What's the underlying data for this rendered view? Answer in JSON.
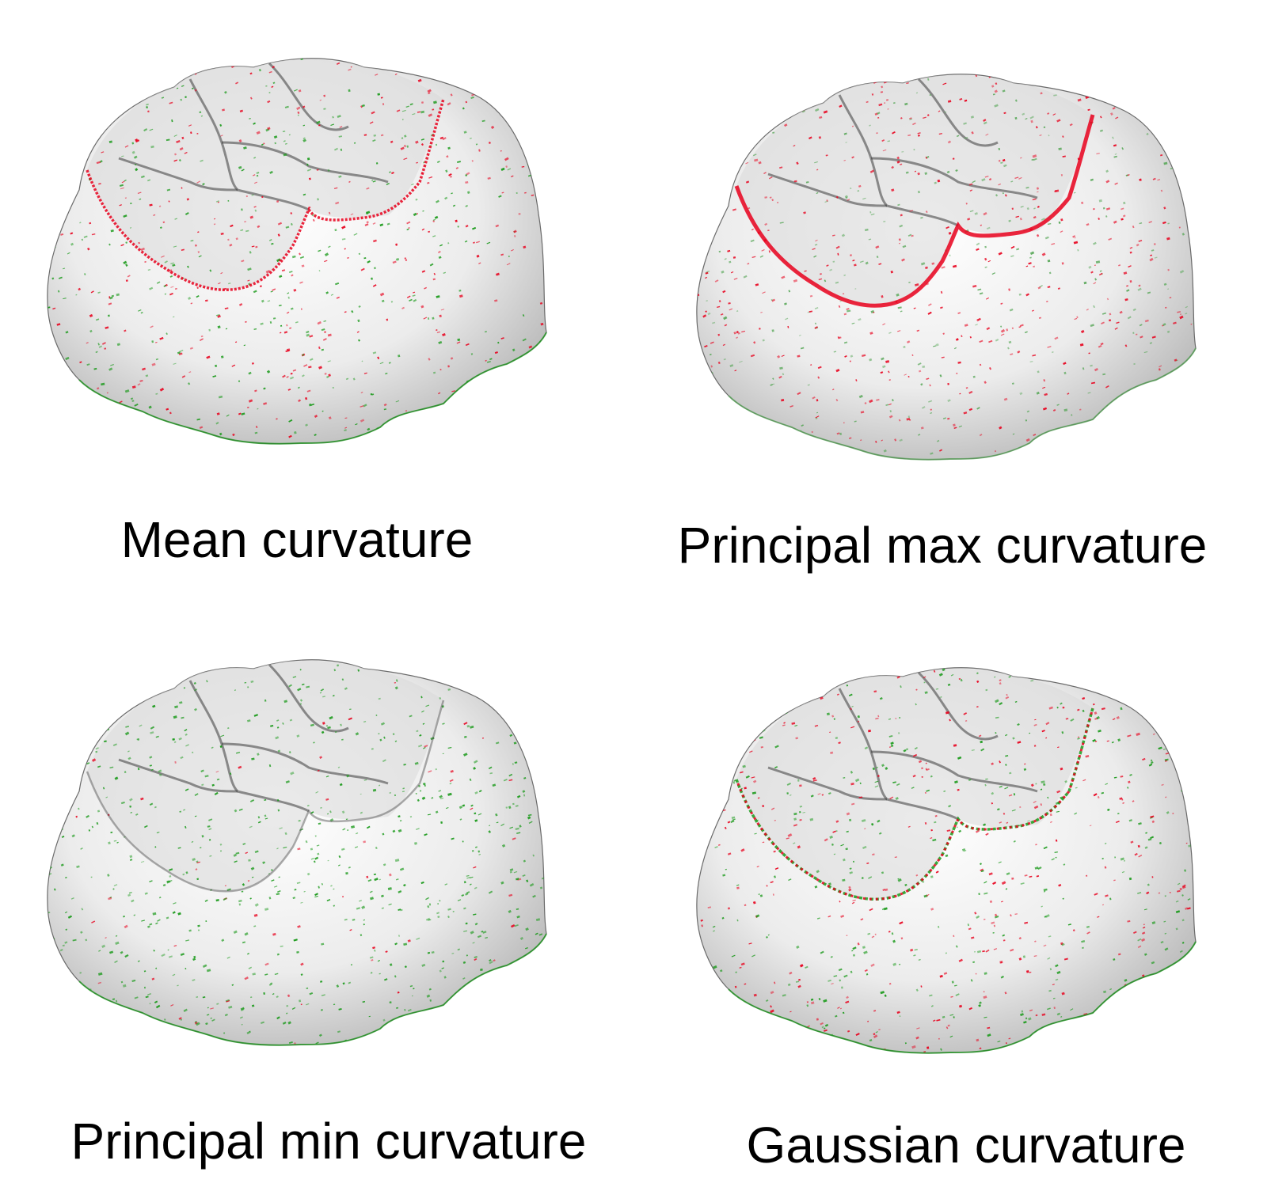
{
  "panels": [
    {
      "id": "mean",
      "caption": "Mean curvature",
      "positive_color": "#e8001c",
      "negative_color": "#1a9a1a",
      "red_density": 0.45,
      "green_density": 0.55,
      "ridge_highlight": "red"
    },
    {
      "id": "max",
      "caption": "Principal max curvature",
      "positive_color": "#e8001c",
      "negative_color": "#5aa85a",
      "red_density": 0.6,
      "green_density": 0.4,
      "ridge_highlight": "red"
    },
    {
      "id": "min",
      "caption": "Principal min curvature",
      "positive_color": "#e8001c",
      "negative_color": "#1a9a1a",
      "red_density": 0.1,
      "green_density": 0.9,
      "ridge_highlight": "none"
    },
    {
      "id": "gauss",
      "caption": "Gaussian curvature",
      "positive_color": "#e8001c",
      "negative_color": "#1a9a1a",
      "red_density": 0.5,
      "green_density": 0.5,
      "ridge_highlight": "mixed"
    }
  ]
}
